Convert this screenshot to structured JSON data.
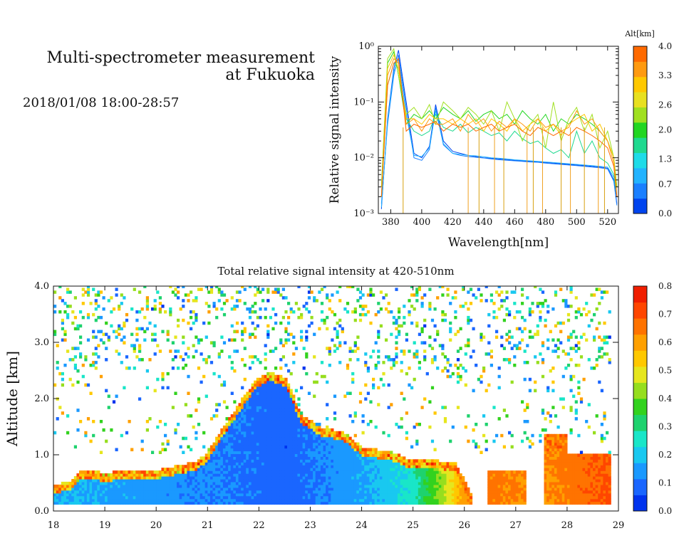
{
  "header": {
    "title_line1": "Multi-spectrometer measurement",
    "title_line2": "at Fukuoka",
    "date_range": "2018/01/08 18:00-28:57"
  },
  "chart_data": [
    {
      "type": "line",
      "title": "",
      "xlabel": "Wavelength[nm]",
      "ylabel": "Relative signal intensity",
      "yscale": "log",
      "xlim": [
        372,
        527
      ],
      "ylim": [
        0.001,
        1
      ],
      "x_ticks": [
        380,
        400,
        420,
        440,
        460,
        480,
        500,
        520
      ],
      "y_ticks": [
        "10⁻³",
        "10⁻²",
        "10⁻¹",
        "10⁰"
      ],
      "colorbar": {
        "label": "Alt[km]",
        "ticks": [
          "0.0",
          "0.7",
          "1.3",
          "2.0",
          "2.6",
          "3.3",
          "4.0"
        ],
        "colors": [
          "#0044ee",
          "#1a7fff",
          "#22b3ff",
          "#1edbe8",
          "#1fd98f",
          "#22d622",
          "#a0e020",
          "#e8e020",
          "#ffc800",
          "#ff9a10",
          "#ff6a00"
        ]
      },
      "x": [
        374,
        378,
        382,
        385,
        390,
        395,
        400,
        405,
        409,
        414,
        420,
        425,
        430,
        435,
        440,
        445,
        450,
        455,
        460,
        465,
        470,
        475,
        480,
        485,
        490,
        495,
        500,
        505,
        510,
        515,
        520,
        524,
        526
      ],
      "series": [
        {
          "altitude_km": 0.1,
          "values": [
            0.0012,
            0.05,
            0.4,
            0.85,
            0.1,
            0.012,
            0.01,
            0.016,
            0.09,
            0.02,
            0.013,
            0.012,
            0.011,
            0.0105,
            0.01,
            0.0098,
            0.0095,
            0.0093,
            0.009,
            0.0088,
            0.0086,
            0.0085,
            0.0082,
            0.008,
            0.0078,
            0.0076,
            0.0074,
            0.0072,
            0.007,
            0.0068,
            0.0065,
            0.004,
            0.0015
          ]
        },
        {
          "altitude_km": 0.4,
          "values": [
            0.0015,
            0.04,
            0.3,
            0.7,
            0.08,
            0.01,
            0.009,
            0.014,
            0.08,
            0.017,
            0.012,
            0.011,
            0.0105,
            0.0102,
            0.0099,
            0.0095,
            0.0092,
            0.009,
            0.0088,
            0.0086,
            0.0084,
            0.0083,
            0.008,
            0.0078,
            0.0076,
            0.0074,
            0.0072,
            0.007,
            0.0068,
            0.0066,
            0.0063,
            0.0038,
            0.0014
          ]
        },
        {
          "altitude_km": 0.9,
          "values": [
            0.0013,
            0.045,
            0.35,
            0.6,
            0.06,
            0.011,
            0.0105,
            0.015,
            0.07,
            0.018,
            0.012,
            0.0115,
            0.011,
            0.0108,
            0.0104,
            0.01,
            0.0098,
            0.0095,
            0.0092,
            0.009,
            0.0088,
            0.0086,
            0.0084,
            0.0082,
            0.008,
            0.0078,
            0.0076,
            0.0074,
            0.0072,
            0.007,
            0.0068,
            0.0045,
            0.002
          ]
        },
        {
          "altitude_km": 1.6,
          "values": [
            0.002,
            0.2,
            0.5,
            0.4,
            0.05,
            0.03,
            0.025,
            0.03,
            0.06,
            0.035,
            0.03,
            0.04,
            0.028,
            0.035,
            0.03,
            0.025,
            0.028,
            0.02,
            0.03,
            0.022,
            0.018,
            0.02,
            0.015,
            0.012,
            0.014,
            0.01,
            0.03,
            0.012,
            0.02,
            0.01,
            0.008,
            0.005,
            0.002
          ]
        },
        {
          "altitude_km": 2.1,
          "values": [
            0.003,
            0.5,
            0.8,
            0.3,
            0.04,
            0.06,
            0.05,
            0.07,
            0.05,
            0.08,
            0.06,
            0.05,
            0.07,
            0.045,
            0.06,
            0.07,
            0.05,
            0.06,
            0.04,
            0.07,
            0.05,
            0.04,
            0.06,
            0.03,
            0.05,
            0.04,
            0.06,
            0.05,
            0.04,
            0.03,
            0.02,
            0.01,
            0.003
          ]
        },
        {
          "altitude_km": 2.5,
          "values": [
            0.003,
            0.6,
            0.9,
            0.3,
            0.06,
            0.08,
            0.05,
            0.09,
            0.04,
            0.1,
            0.07,
            0.05,
            0.08,
            0.06,
            0.04,
            0.07,
            0.03,
            0.1,
            0.05,
            0.02,
            0.04,
            0.06,
            0.015,
            0.1,
            0.02,
            0.05,
            0.08,
            0.03,
            0.06,
            0.015,
            0.03,
            0.01,
            0.003
          ]
        },
        {
          "altitude_km": 3.0,
          "values": [
            0.002,
            0.4,
            0.7,
            0.4,
            0.05,
            0.05,
            0.04,
            0.06,
            0.05,
            0.05,
            0.04,
            0.05,
            0.04,
            0.05,
            0.03,
            0.05,
            0.04,
            0.03,
            0.05,
            0.03,
            0.04,
            0.05,
            0.03,
            0.04,
            0.025,
            0.04,
            0.05,
            0.06,
            0.03,
            0.04,
            0.02,
            0.01,
            0.002
          ]
        },
        {
          "altitude_km": 3.5,
          "values": [
            0.002,
            0.3,
            0.6,
            0.5,
            0.04,
            0.05,
            0.03,
            0.05,
            0.04,
            0.04,
            0.05,
            0.03,
            0.06,
            0.04,
            0.05,
            0.03,
            0.045,
            0.035,
            0.05,
            0.04,
            0.03,
            0.05,
            0.035,
            0.04,
            0.03,
            0.035,
            0.07,
            0.04,
            0.05,
            0.03,
            0.02,
            0.008,
            0.002
          ]
        },
        {
          "altitude_km": 3.9,
          "values": [
            0.002,
            0.2,
            0.5,
            0.6,
            0.03,
            0.04,
            0.035,
            0.04,
            0.045,
            0.03,
            0.04,
            0.035,
            0.04,
            0.03,
            0.035,
            0.04,
            0.03,
            0.035,
            0.04,
            0.03,
            0.025,
            0.035,
            0.03,
            0.025,
            0.03,
            0.025,
            0.035,
            0.03,
            0.025,
            0.02,
            0.015,
            0.007,
            0.002
          ]
        }
      ]
    },
    {
      "type": "heatmap",
      "title": "Total relative signal intensity at 420-510nm",
      "xlabel": "",
      "ylabel": "Altitude [km]",
      "xlim": [
        18,
        29
      ],
      "ylim": [
        0,
        4
      ],
      "x_ticks": [
        "18",
        "19",
        "20",
        "21",
        "22",
        "23",
        "24",
        "25",
        "26",
        "27",
        "28",
        "29"
      ],
      "y_ticks": [
        "0.0",
        "1.0",
        "2.0",
        "3.0",
        "4.0"
      ],
      "colorbar": {
        "label": "",
        "range": [
          0,
          0.8
        ],
        "ticks": [
          "0.0",
          "0.1",
          "0.2",
          "0.3",
          "0.4",
          "0.5",
          "0.6",
          "0.7",
          "0.8"
        ],
        "colors": [
          "#0033ee",
          "#1a66ff",
          "#1a99ff",
          "#19c8f0",
          "#19e6c8",
          "#1ed26e",
          "#32d21e",
          "#96de1e",
          "#e6e61e",
          "#ffc800",
          "#ffa000",
          "#ff7300",
          "#ff4600",
          "#f01e00"
        ]
      },
      "aerosol_layer_top_km": [
        {
          "x": 18.0,
          "top": 0.45
        },
        {
          "x": 18.3,
          "top": 0.5
        },
        {
          "x": 18.5,
          "top": 0.72
        },
        {
          "x": 19.0,
          "top": 0.65
        },
        {
          "x": 19.5,
          "top": 0.72
        },
        {
          "x": 20.0,
          "top": 0.7
        },
        {
          "x": 20.5,
          "top": 0.8
        },
        {
          "x": 20.8,
          "top": 0.88
        },
        {
          "x": 21.0,
          "top": 1.05
        },
        {
          "x": 21.3,
          "top": 1.5
        },
        {
          "x": 21.6,
          "top": 1.9
        },
        {
          "x": 21.9,
          "top": 2.3
        },
        {
          "x": 22.2,
          "top": 2.45
        },
        {
          "x": 22.5,
          "top": 2.35
        },
        {
          "x": 22.8,
          "top": 1.7
        },
        {
          "x": 23.2,
          "top": 1.45
        },
        {
          "x": 23.6,
          "top": 1.4
        },
        {
          "x": 24.0,
          "top": 1.1
        },
        {
          "x": 24.5,
          "top": 1.05
        },
        {
          "x": 24.9,
          "top": 0.9
        },
        {
          "x": 25.3,
          "top": 0.88
        },
        {
          "x": 25.8,
          "top": 0.85
        },
        {
          "x": 26.1,
          "top": 0.3
        }
      ],
      "boundary_layer_mean_value": [
        {
          "x": 18.0,
          "v": 0.18
        },
        {
          "x": 21.0,
          "v": 0.12
        },
        {
          "x": 22.5,
          "v": 0.08
        },
        {
          "x": 24.0,
          "v": 0.16
        },
        {
          "x": 24.9,
          "v": 0.24
        },
        {
          "x": 25.5,
          "v": 0.42
        },
        {
          "x": 26.0,
          "v": 0.62
        },
        {
          "x": 26.5,
          "v": 0.65
        },
        {
          "x": 27.5,
          "v": 0.62
        },
        {
          "x": 28.8,
          "v": 0.7
        }
      ]
    }
  ]
}
